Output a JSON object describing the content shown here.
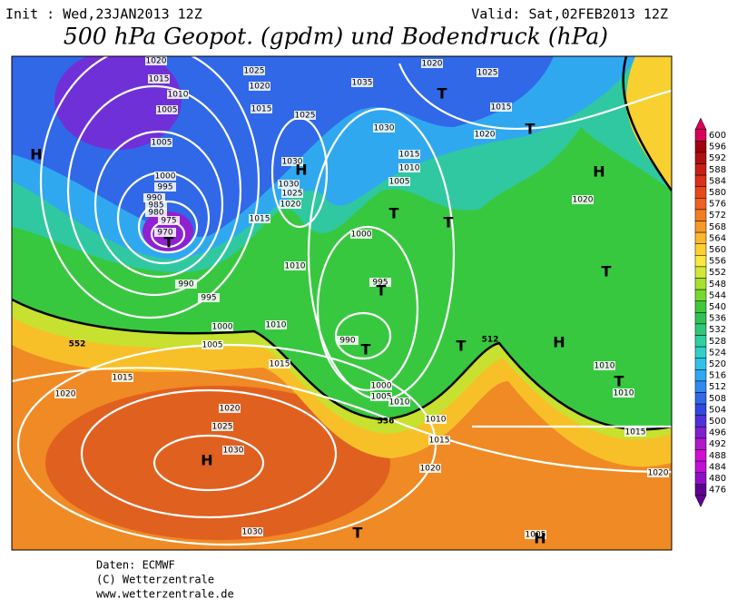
{
  "header": {
    "init": "Init : Wed,23JAN2013 12Z",
    "valid": "Valid: Sat,02FEB2013 12Z",
    "title": "500 hPa Geopot. (gpdm) und Bodendruck (hPa)"
  },
  "map": {
    "isobar_labels": [
      "1020",
      "1015",
      "1010",
      "1005",
      "1005",
      "1000",
      "995",
      "990",
      "985",
      "980",
      "975",
      "970",
      "990",
      "995",
      "1000",
      "1005",
      "1010",
      "1015",
      "1020",
      "1020",
      "1025",
      "1030",
      "1030",
      "1015",
      "1025",
      "1020",
      "1015",
      "1025",
      "1030",
      "1030",
      "1025",
      "1020",
      "1015",
      "1010",
      "1035",
      "1030",
      "1020",
      "1025",
      "1015",
      "1020",
      "1015",
      "1010",
      "1005",
      "1000",
      "995",
      "990",
      "1000",
      "1005",
      "1010",
      "1010",
      "1015",
      "1020",
      "1020",
      "1010",
      "1010",
      "1015",
      "1020",
      "1005"
    ],
    "height_labels": [
      "552",
      "512",
      "536"
    ],
    "pressure_centers": [
      "H",
      "H",
      "H",
      "H",
      "H",
      "H",
      "T",
      "T",
      "T",
      "T",
      "T",
      "T",
      "T",
      "T",
      "T",
      "T",
      "T"
    ]
  },
  "colorbar": {
    "ticks": [
      600,
      596,
      592,
      588,
      584,
      580,
      576,
      572,
      568,
      564,
      560,
      556,
      552,
      548,
      544,
      540,
      536,
      532,
      528,
      524,
      520,
      516,
      512,
      508,
      504,
      500,
      496,
      492,
      488,
      484,
      480,
      476
    ],
    "colors": [
      "#d8005a",
      "#a00010",
      "#b01010",
      "#c82018",
      "#dc3018",
      "#e84818",
      "#f06020",
      "#f47c24",
      "#f89828",
      "#fcb82c",
      "#fcd030",
      "#f8e840",
      "#d0e838",
      "#a8e030",
      "#78d830",
      "#40c838",
      "#30c058",
      "#30c878",
      "#30d0a0",
      "#30d0c8",
      "#30c0e8",
      "#30a8f0",
      "#3088f0",
      "#3068e8",
      "#3048e0",
      "#5030d8",
      "#8020d0",
      "#b018c8",
      "#d010d0",
      "#c010d8",
      "#9010c8",
      "#600090"
    ]
  },
  "footer": {
    "source": "Daten: ECMWF",
    "copyright": "(C) Wetterzentrale",
    "url": "www.wetterzentrale.de"
  }
}
